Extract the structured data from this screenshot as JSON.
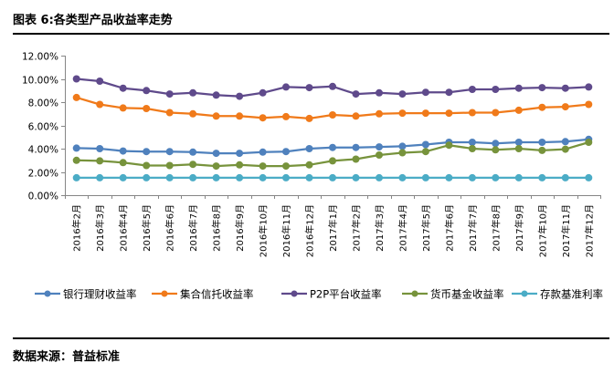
{
  "page": {
    "title": "图表 6:各类型产品收益率走势",
    "source": "数据来源：普益标准"
  },
  "chart_data": {
    "type": "line",
    "title": "图表 6:各类型产品收益率走势",
    "xlabel": "",
    "ylabel": "",
    "ylim": [
      0,
      12
    ],
    "yticks": [
      "0.00%",
      "2.00%",
      "4.00%",
      "6.00%",
      "8.00%",
      "10.00%",
      "12.00%"
    ],
    "ytick_values": [
      0,
      2,
      4,
      6,
      8,
      10,
      12
    ],
    "grid": false,
    "legend_position": "bottom",
    "categories": [
      "2016年2月",
      "2016年3月",
      "2016年4月",
      "2016年5月",
      "2016年6月",
      "2016年7月",
      "2016年8月",
      "2016年9月",
      "2016年10月",
      "2016年11月",
      "2016年12月",
      "2017年1月",
      "2017年2月",
      "2017年3月",
      "2017年4月",
      "2017年5月",
      "2017年6月",
      "2017年7月",
      "2017年8月",
      "2017年9月",
      "2017年10月",
      "2017年11月",
      "2017年12月"
    ],
    "series": [
      {
        "name": "银行理财收益率",
        "color": "#4F81BD",
        "values": [
          4.05,
          4.0,
          3.8,
          3.75,
          3.75,
          3.7,
          3.6,
          3.6,
          3.7,
          3.75,
          4.0,
          4.1,
          4.1,
          4.15,
          4.2,
          4.35,
          4.55,
          4.55,
          4.45,
          4.55,
          4.55,
          4.6,
          4.8
        ]
      },
      {
        "name": "集合信托收益率",
        "color": "#F07A1A",
        "values": [
          8.4,
          7.8,
          7.5,
          7.45,
          7.1,
          7.0,
          6.8,
          6.8,
          6.65,
          6.75,
          6.6,
          6.9,
          6.8,
          7.0,
          7.05,
          7.05,
          7.05,
          7.1,
          7.1,
          7.3,
          7.55,
          7.6,
          7.8
        ]
      },
      {
        "name": "P2P平台收益率",
        "color": "#5F4A8B",
        "values": [
          10.0,
          9.8,
          9.2,
          9.0,
          8.7,
          8.8,
          8.6,
          8.5,
          8.8,
          9.3,
          9.25,
          9.35,
          8.7,
          8.8,
          8.7,
          8.85,
          8.85,
          9.1,
          9.1,
          9.2,
          9.25,
          9.2,
          9.3
        ]
      },
      {
        "name": "货币基金收益率",
        "color": "#77933C",
        "values": [
          3.0,
          2.95,
          2.8,
          2.55,
          2.55,
          2.65,
          2.5,
          2.6,
          2.5,
          2.5,
          2.6,
          2.95,
          3.1,
          3.45,
          3.65,
          3.75,
          4.3,
          4.0,
          3.9,
          4.0,
          3.85,
          3.95,
          4.55
        ]
      },
      {
        "name": "存款基准利率",
        "color": "#4BACC6",
        "values": [
          1.5,
          1.5,
          1.5,
          1.5,
          1.5,
          1.5,
          1.5,
          1.5,
          1.5,
          1.5,
          1.5,
          1.5,
          1.5,
          1.5,
          1.5,
          1.5,
          1.5,
          1.5,
          1.5,
          1.5,
          1.5,
          1.5,
          1.5
        ]
      }
    ]
  }
}
